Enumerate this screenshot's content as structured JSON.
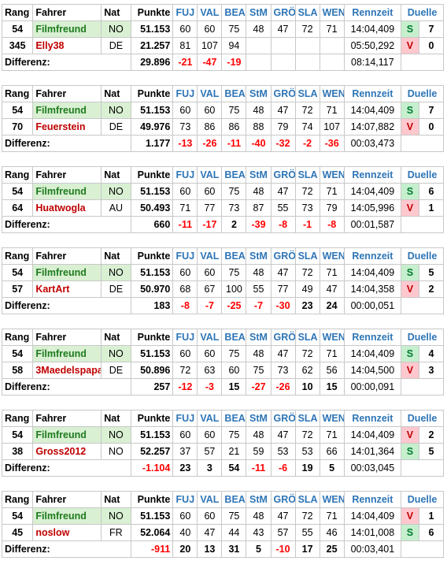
{
  "header": [
    "Rang",
    "Fahrer",
    "Nat",
    "Punkte",
    "FUJ",
    "VAL",
    "BEA",
    "StM",
    "GRÖ",
    "SLA",
    "WEN",
    "Rennzeit",
    "Duelle"
  ],
  "diff_label": "Differenz:",
  "colors": {
    "green_bg": "#d9f0d3",
    "s_bg": "#c6efce",
    "v_bg": "#ffc7ce",
    "red": "#ff0000",
    "blue": "#2e75b6"
  },
  "blocks": [
    {
      "p1": {
        "rang": "54",
        "name": "Filmfreund",
        "nat": "NO",
        "punkte": "51.153",
        "races": [
          "60",
          "60",
          "75",
          "48",
          "47",
          "72",
          "71"
        ],
        "time": "14:04,409",
        "sv": "S",
        "duel": "7"
      },
      "p2": {
        "rang": "345",
        "name": "Elly38",
        "nat": "DE",
        "punkte": "21.257",
        "races": [
          "81",
          "107",
          "94",
          "",
          "",
          "",
          ""
        ],
        "time": "05:50,292",
        "sv": "V",
        "duel": "0"
      },
      "diff": {
        "punkte": "29.896",
        "races": [
          "-21",
          "-47",
          "-19",
          "",
          "",
          "",
          ""
        ],
        "time": "08:14,117"
      }
    },
    {
      "p1": {
        "rang": "54",
        "name": "Filmfreund",
        "nat": "NO",
        "punkte": "51.153",
        "races": [
          "60",
          "60",
          "75",
          "48",
          "47",
          "72",
          "71"
        ],
        "time": "14:04,409",
        "sv": "S",
        "duel": "7"
      },
      "p2": {
        "rang": "70",
        "name": "Feuerstein",
        "nat": "DE",
        "punkte": "49.976",
        "races": [
          "73",
          "86",
          "86",
          "88",
          "79",
          "74",
          "107"
        ],
        "time": "14:07,882",
        "sv": "V",
        "duel": "0"
      },
      "diff": {
        "punkte": "1.177",
        "races": [
          "-13",
          "-26",
          "-11",
          "-40",
          "-32",
          "-2",
          "-36"
        ],
        "time": "00:03,473"
      }
    },
    {
      "p1": {
        "rang": "54",
        "name": "Filmfreund",
        "nat": "NO",
        "punkte": "51.153",
        "races": [
          "60",
          "60",
          "75",
          "48",
          "47",
          "72",
          "71"
        ],
        "time": "14:04,409",
        "sv": "S",
        "duel": "6"
      },
      "p2": {
        "rang": "64",
        "name": "Huatwogla",
        "nat": "AU",
        "punkte": "50.493",
        "races": [
          "71",
          "77",
          "73",
          "87",
          "55",
          "73",
          "79"
        ],
        "time": "14:05,996",
        "sv": "V",
        "duel": "1"
      },
      "diff": {
        "punkte": "660",
        "races": [
          "-11",
          "-17",
          "2",
          "-39",
          "-8",
          "-1",
          "-8"
        ],
        "time": "00:01,587"
      }
    },
    {
      "p1": {
        "rang": "54",
        "name": "Filmfreund",
        "nat": "NO",
        "punkte": "51.153",
        "races": [
          "60",
          "60",
          "75",
          "48",
          "47",
          "72",
          "71"
        ],
        "time": "14:04,409",
        "sv": "S",
        "duel": "5"
      },
      "p2": {
        "rang": "57",
        "name": "KartArt",
        "nat": "DE",
        "punkte": "50.970",
        "races": [
          "68",
          "67",
          "100",
          "55",
          "77",
          "49",
          "47"
        ],
        "time": "14:04,358",
        "sv": "V",
        "duel": "2"
      },
      "diff": {
        "punkte": "183",
        "races": [
          "-8",
          "-7",
          "-25",
          "-7",
          "-30",
          "23",
          "24"
        ],
        "time": "00:00,051"
      }
    },
    {
      "p1": {
        "rang": "54",
        "name": "Filmfreund",
        "nat": "NO",
        "punkte": "51.153",
        "races": [
          "60",
          "60",
          "75",
          "48",
          "47",
          "72",
          "71"
        ],
        "time": "14:04,409",
        "sv": "S",
        "duel": "4"
      },
      "p2": {
        "rang": "58",
        "name": "3Maedelspapa",
        "nat": "DE",
        "punkte": "50.896",
        "races": [
          "72",
          "63",
          "60",
          "75",
          "73",
          "62",
          "56"
        ],
        "time": "14:04,500",
        "sv": "V",
        "duel": "3"
      },
      "diff": {
        "punkte": "257",
        "races": [
          "-12",
          "-3",
          "15",
          "-27",
          "-26",
          "10",
          "15"
        ],
        "time": "00:00,091"
      }
    },
    {
      "p1": {
        "rang": "54",
        "name": "Filmfreund",
        "nat": "NO",
        "punkte": "51.153",
        "races": [
          "60",
          "60",
          "75",
          "48",
          "47",
          "72",
          "71"
        ],
        "time": "14:04,409",
        "sv": "V",
        "duel": "2"
      },
      "p2": {
        "rang": "38",
        "name": "Gross2012",
        "nat": "NO",
        "punkte": "52.257",
        "races": [
          "37",
          "57",
          "21",
          "59",
          "53",
          "53",
          "66"
        ],
        "time": "14:01,364",
        "sv": "S",
        "duel": "5"
      },
      "diff": {
        "punkte": "-1.104",
        "races": [
          "23",
          "3",
          "54",
          "-11",
          "-6",
          "19",
          "5"
        ],
        "time": "00:03,045"
      }
    },
    {
      "p1": {
        "rang": "54",
        "name": "Filmfreund",
        "nat": "NO",
        "punkte": "51.153",
        "races": [
          "60",
          "60",
          "75",
          "48",
          "47",
          "72",
          "71"
        ],
        "time": "14:04,409",
        "sv": "V",
        "duel": "1"
      },
      "p2": {
        "rang": "45",
        "name": "noslow",
        "nat": "FR",
        "punkte": "52.064",
        "races": [
          "40",
          "47",
          "44",
          "43",
          "57",
          "55",
          "46"
        ],
        "time": "14:01,008",
        "sv": "S",
        "duel": "6"
      },
      "diff": {
        "punkte": "-911",
        "races": [
          "20",
          "13",
          "31",
          "5",
          "-10",
          "17",
          "25"
        ],
        "time": "00:03,401"
      }
    }
  ]
}
